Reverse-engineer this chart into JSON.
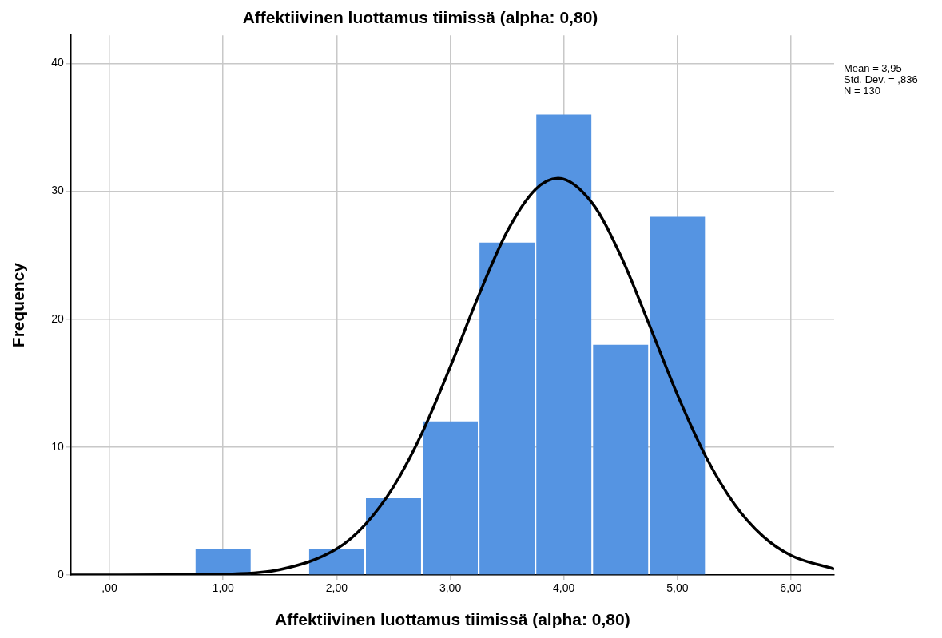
{
  "chart_data": {
    "type": "histogram",
    "title": "Affektiivinen luottamus tiimissä (alpha: 0,80)",
    "xlabel": "Affektiivinen luottamus tiimissä (alpha: 0,80)",
    "ylabel": "Frequency",
    "annotations": [
      "Mean = 3,95",
      "Std. Dev. = ,836",
      "N = 130"
    ],
    "xlim": [
      -0.34,
      6.38
    ],
    "xticks": [
      {
        "value": 0,
        "label": ",00"
      },
      {
        "value": 1,
        "label": "1,00"
      },
      {
        "value": 2,
        "label": "2,00"
      },
      {
        "value": 3,
        "label": "3,00"
      },
      {
        "value": 4,
        "label": "4,00"
      },
      {
        "value": 5,
        "label": "5,00"
      },
      {
        "value": 6,
        "label": "6,00"
      }
    ],
    "ylim": [
      0,
      42.2
    ],
    "yticks": [
      0,
      10,
      20,
      30,
      40
    ],
    "grid": true,
    "legend": false,
    "marker": "none",
    "series": [
      {
        "type": "histogram",
        "color": "#5594e2",
        "bins": [
          0.75,
          1.25,
          1.75,
          2.25,
          2.75,
          3.25,
          3.75,
          4.25,
          4.75,
          5.25
        ],
        "values": [
          2,
          0,
          2,
          6,
          12,
          26,
          36,
          18,
          28
        ]
      },
      {
        "type": "line",
        "color": "#000000",
        "x": [
          -0.34,
          0.5,
          1.0,
          1.5,
          2.0,
          2.25,
          2.5,
          2.75,
          3.0,
          3.25,
          3.5,
          3.75,
          3.95,
          4.25,
          4.5,
          4.75,
          5.0,
          5.25,
          5.5,
          5.75,
          6.0,
          6.38
        ],
        "values": [
          0,
          0.01,
          0.06,
          0.42,
          2.04,
          3.93,
          6.89,
          11.07,
          16.27,
          21.85,
          26.84,
          30.15,
          31.02,
          29.08,
          24.98,
          19.62,
          14.09,
          9.26,
          5.56,
          3.05,
          1.53,
          0.47
        ]
      }
    ]
  }
}
